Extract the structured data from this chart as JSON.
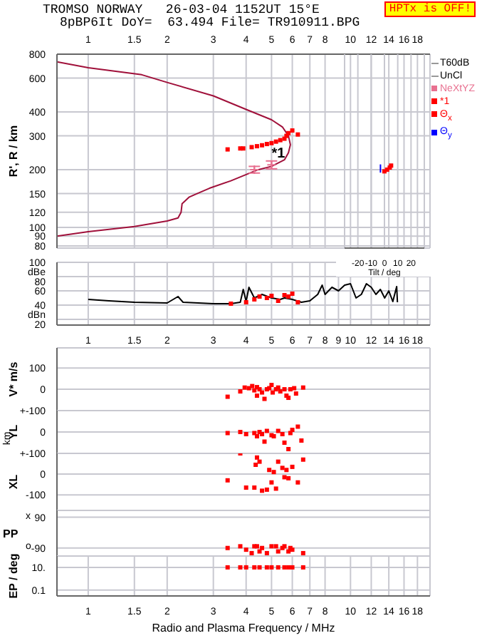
{
  "chart_data": [
    {
      "type": "line",
      "title": "TROMSO NORWAY   26-03-04 1152UT 15°E",
      "subtitle": "8pBP6It DoY=  63.494 File= TR910911.BPG",
      "ylabel": "R', R / km",
      "log": "xy",
      "grid": true,
      "legend": "right",
      "xlim": [
        0.76,
        20.1
      ],
      "ylim": [
        78,
        800
      ],
      "xticks": [
        1,
        1.5,
        2,
        3,
        4,
        5,
        6,
        7,
        8,
        10,
        12,
        14,
        16,
        18
      ],
      "yticks": [
        80,
        90,
        100,
        120,
        150,
        200,
        300,
        400,
        600,
        800
      ],
      "annotations": [
        "HPTx is OFF!",
        "T60dB",
        "UnCl",
        {
          "text": "*1",
          "x": 4.7,
          "y": 245
        }
      ],
      "series": [
        {
          "color": "#a0103a",
          "x": [
            0.76,
            1,
            1.6,
            2,
            3,
            4,
            5,
            5.5,
            5.8,
            5.9,
            5.8,
            5.6,
            5,
            4.4,
            3.5,
            2.9,
            2.6,
            2.43,
            2.28,
            2.26,
            2.2,
            2,
            1.5,
            1,
            0.76
          ],
          "values": [
            730,
            680,
            625,
            570,
            485,
            412,
            364,
            334,
            300,
            270,
            245,
            225,
            208,
            199,
            175,
            160,
            150,
            144,
            133,
            120,
            112,
            108,
            101,
            95,
            90
          ]
        },
        {
          "type": "scatter",
          "name": "NeXtYZ",
          "color": "#e87090",
          "marker": "cross",
          "x": [
            4.3,
            5.0
          ],
          "values": [
            200,
            212
          ],
          "errors": [
            8,
            10
          ]
        },
        {
          "type": "scatter",
          "name": "*1",
          "color": "#ff0000",
          "marker": "square",
          "x": [
            3.4,
            3.8,
            3.9,
            4.2,
            4.4,
            4.6,
            4.8,
            5.0,
            5.2,
            5.4,
            5.6,
            5.7,
            5.8,
            6.0,
            6.3
          ],
          "values": [
            255,
            258,
            258,
            262,
            265,
            268,
            272,
            275,
            280,
            285,
            290,
            300,
            310,
            320,
            305
          ]
        }
      ]
    },
    {
      "type": "scatter",
      "xlabel": "Tilt / deg",
      "grid": "x",
      "tick_labels": "x",
      "xlim": [
        -30,
        30
      ],
      "ylim": [
        78,
        800
      ],
      "log": "y",
      "xticks": [
        -20,
        -10,
        0,
        10,
        20
      ],
      "series": [
        {
          "name": "Θ$_{x}$",
          "color": "#ff0000",
          "marker": "square",
          "x": [
            0,
            2,
            4,
            5
          ],
          "values": [
            196,
            200,
            205,
            210
          ]
        },
        {
          "type": "line",
          "name": "Θ$_{y}$",
          "color": "#0000ff",
          "x": [
            -3,
            -3
          ],
          "values": [
            193,
            213
          ]
        }
      ]
    },
    {
      "type": "line",
      "grid": true,
      "log": "x",
      "xlim": [
        0.76,
        20.1
      ],
      "ylim": [
        12,
        100
      ],
      "xticks": [
        1,
        1.5,
        2,
        3,
        4,
        5,
        6,
        7,
        8,
        9,
        10,
        12,
        14,
        16,
        18
      ],
      "yticks": [
        {
          "value": 20,
          "label": "dBn 20"
        },
        40,
        60,
        {
          "value": 80,
          "label": "dBe 80"
        },
        100
      ],
      "series": [
        {
          "color": "#000000",
          "x": [
            1,
            1.2,
            1.5,
            2,
            2.2,
            2.3,
            3,
            3.5,
            3.8,
            3.9,
            4,
            4.1,
            4.3,
            4.6,
            5,
            5.4,
            5.6,
            6,
            6.5,
            7,
            7.5,
            7.8,
            8,
            8.5,
            9,
            9.5,
            10,
            10.5,
            11,
            11.5,
            12,
            12.5,
            13,
            13.5,
            14,
            14.5,
            15,
            15.1
          ],
          "values": [
            48,
            46,
            44,
            43,
            52,
            44,
            42,
            42,
            44,
            62,
            45,
            65,
            50,
            55,
            50,
            48,
            50,
            48,
            44,
            46,
            55,
            68,
            55,
            65,
            60,
            68,
            70,
            50,
            55,
            70,
            65,
            55,
            62,
            50,
            60,
            45,
            66,
            44
          ]
        },
        {
          "type": "scatter",
          "color": "#ff0000",
          "marker": "square",
          "x": [
            3.5,
            4,
            4.3,
            4.5,
            4.8,
            5,
            5.3,
            5.6,
            5.8,
            6,
            6.3
          ],
          "values": [
            42,
            44,
            48,
            52,
            50,
            53,
            46,
            54,
            52,
            56,
            44
          ]
        }
      ]
    },
    {
      "type": "scatter",
      "ylabel": "V* m/s",
      "grid": true,
      "log": "x",
      "tick_labels": "y",
      "marker": "square",
      "xlim": [
        0.76,
        20.1
      ],
      "ylim": [
        -100,
        194
      ],
      "xticks": [
        1,
        1.5,
        2,
        3,
        4,
        5,
        6,
        7,
        8,
        10,
        12,
        14,
        16,
        18
      ],
      "yticks": [
        100,
        0,
        {
          "value": -100,
          "label": "+-100"
        }
      ],
      "series": [
        {
          "color": "#ff0000",
          "x": [
            3.4,
            3.8,
            3.95,
            4.1,
            4.22,
            4.3,
            4.4,
            4.4,
            4.5,
            4.6,
            4.7,
            4.8,
            4.9,
            5.0,
            5.05,
            5.2,
            5.3,
            5.4,
            5.6,
            5.7,
            5.8,
            5.9,
            6.1,
            6.2,
            6.6
          ],
          "values": [
            -35,
            -10,
            8,
            5,
            15,
            -5,
            10,
            -30,
            0,
            -15,
            -45,
            0,
            5,
            20,
            -15,
            0,
            8,
            -10,
            0,
            -30,
            -40,
            0,
            5,
            -20,
            8
          ]
        }
      ]
    },
    {
      "type": "scatter",
      "ylabel": "YL",
      "grid": true,
      "log": "x",
      "tick_labels": "y",
      "marker": "square",
      "annotations": [
        "km"
      ],
      "xlim": [
        0.76,
        20.1
      ],
      "ylim": [
        -100,
        100
      ],
      "xticks": [
        1,
        1.5,
        2,
        3,
        4,
        5,
        6,
        7,
        8,
        10,
        12,
        14,
        16,
        18
      ],
      "yticks": [
        0,
        {
          "value": -100,
          "label": "+-100"
        }
      ],
      "series": [
        {
          "color": "#ff0000",
          "x": [
            3.4,
            3.8,
            4.0,
            4.3,
            4.4,
            4.5,
            4.6,
            4.7,
            4.8,
            5.0,
            5.1,
            5.3,
            5.5,
            5.6,
            5.8,
            5.9,
            6.0,
            6.3,
            6.5
          ],
          "values": [
            -5,
            0,
            -10,
            -5,
            -20,
            0,
            -10,
            -45,
            5,
            -15,
            -20,
            5,
            -10,
            -50,
            -80,
            -5,
            10,
            25,
            -40
          ]
        }
      ]
    },
    {
      "type": "scatter",
      "ylabel": "XL",
      "grid": true,
      "log": "x",
      "tick_labels": "y",
      "marker": "square",
      "xlim": [
        0.76,
        20.1
      ],
      "ylim": [
        -175,
        100
      ],
      "xticks": [
        1,
        1.5,
        2,
        3,
        4,
        5,
        6,
        7,
        8,
        10,
        12,
        14,
        16,
        18
      ],
      "yticks": [
        0,
        -100
      ],
      "series": [
        {
          "color": "#ff0000",
          "x": [
            3.4,
            3.8,
            4.0,
            4.3,
            4.35,
            4.4,
            4.5,
            4.6,
            4.8,
            4.9,
            5.0,
            5.1,
            5.2,
            5.3,
            5.5,
            5.6,
            5.7,
            5.8,
            6.0,
            6.3,
            6.6
          ],
          "values": [
            -30,
            100,
            -65,
            -65,
            45,
            80,
            60,
            -80,
            -75,
            20,
            -40,
            10,
            -70,
            60,
            30,
            -15,
            20,
            -20,
            35,
            -40,
            70
          ]
        }
      ]
    },
    {
      "type": "scatter",
      "ylabel": "PP",
      "grid": true,
      "log": "x",
      "tick_labels": "y",
      "marker": "square",
      "annotations": [
        "x",
        "o"
      ],
      "xlim": [
        0.76,
        20.1
      ],
      "ylim": [
        -137,
        130
      ],
      "xticks": [
        1,
        1.5,
        2,
        3,
        4,
        5,
        6,
        7,
        8,
        10,
        12,
        14,
        16,
        18
      ],
      "yticks": [
        90,
        -90
      ],
      "series": [
        {
          "color": "#ff0000",
          "x": [
            3.4,
            3.8,
            4.0,
            4.2,
            4.3,
            4.4,
            4.5,
            4.6,
            4.8,
            5.0,
            5.2,
            5.3,
            5.5,
            5.6,
            5.8,
            5.9,
            6.0,
            6.6
          ],
          "values": [
            -90,
            -80,
            -100,
            -120,
            -80,
            -80,
            -110,
            -90,
            -120,
            -80,
            -80,
            -110,
            -90,
            -80,
            -110,
            -90,
            -100,
            -120
          ]
        }
      ]
    },
    {
      "type": "scatter",
      "ylabel": "EP / deg",
      "xlabel": "Radio and Plasma Frequency / MHz",
      "grid": true,
      "log": "xy",
      "marker": "square",
      "xlim": [
        0.76,
        20.1
      ],
      "ylim": [
        0.03,
        100
      ],
      "xticks": [
        1,
        1.5,
        2,
        3,
        4,
        5,
        6,
        7,
        8,
        10,
        12,
        14,
        16,
        18
      ],
      "yticks": [
        {
          "value": 10,
          "label": "10."
        },
        0.1
      ],
      "series": [
        {
          "color": "#ff0000",
          "x": [
            3.4,
            3.8,
            4.0,
            4.3,
            4.5,
            4.8,
            5.0,
            5.3,
            5.6,
            5.8,
            6.0,
            6.6
          ],
          "values": [
            10,
            10,
            10,
            10,
            10,
            10,
            10,
            10,
            10,
            10,
            10,
            10
          ]
        }
      ]
    }
  ]
}
